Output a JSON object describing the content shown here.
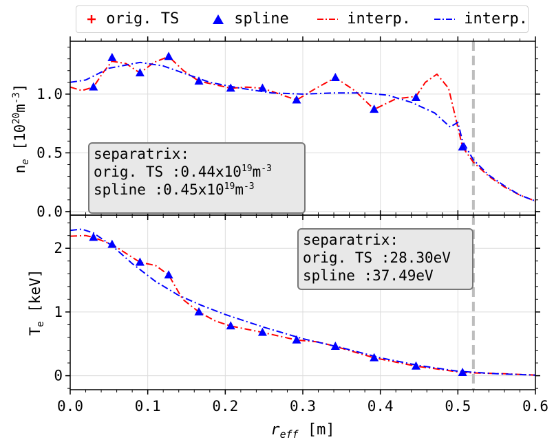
{
  "legend": [
    {
      "symbol": "plus",
      "color": "#ff0000",
      "label": "orig. TS"
    },
    {
      "symbol": "triangle",
      "color": "#0000ff",
      "label": "spline"
    },
    {
      "symbol": "dashdot",
      "color": "#ff0000",
      "label": "interp."
    },
    {
      "symbol": "dashdot",
      "color": "#0000ff",
      "label": "interp."
    }
  ],
  "chart_data": [
    {
      "type": "line",
      "panel": "top",
      "ylabel_base": "n",
      "ylabel_sub": "e",
      "ylabel_unit_open": "[10",
      "ylabel_unit_exp": "20",
      "ylabel_unit_mid": "m",
      "ylabel_unit_exp2": "-3",
      "ylabel_unit_close": "]",
      "xlim": [
        0.0,
        0.6
      ],
      "ylim": [
        -0.03,
        1.45
      ],
      "yticks": [
        0.0,
        0.5,
        1.0
      ],
      "ytick_labels": [
        "0.0",
        "0.5",
        "1.0"
      ],
      "separatrix_x": 0.52,
      "grid": true,
      "series": [
        {
          "style": "markers-triangle",
          "color": "#0000ff",
          "x": [
            0.03,
            0.054,
            0.09,
            0.127,
            0.166,
            0.207,
            0.248,
            0.292,
            0.342,
            0.392,
            0.446,
            0.506
          ],
          "y": [
            1.06,
            1.31,
            1.18,
            1.32,
            1.11,
            1.05,
            1.05,
            0.95,
            1.14,
            0.87,
            0.97,
            0.55
          ]
        },
        {
          "style": "dashdot",
          "color": "#ff0000",
          "x": [
            0.0,
            0.015,
            0.03,
            0.042,
            0.054,
            0.072,
            0.09,
            0.108,
            0.127,
            0.146,
            0.166,
            0.187,
            0.207,
            0.228,
            0.248,
            0.27,
            0.292,
            0.317,
            0.342,
            0.367,
            0.392,
            0.42,
            0.446,
            0.458,
            0.473,
            0.488,
            0.506,
            0.52,
            0.54,
            0.56,
            0.58,
            0.6
          ],
          "y": [
            1.06,
            1.03,
            1.06,
            1.18,
            1.28,
            1.26,
            1.18,
            1.27,
            1.32,
            1.2,
            1.11,
            1.08,
            1.05,
            1.06,
            1.05,
            1.0,
            0.95,
            1.05,
            1.14,
            1.03,
            0.87,
            0.96,
            0.98,
            1.1,
            1.17,
            1.05,
            0.55,
            0.42,
            0.3,
            0.21,
            0.14,
            0.09
          ]
        },
        {
          "style": "dashdot",
          "color": "#0000ff",
          "x": [
            0.0,
            0.02,
            0.05,
            0.09,
            0.12,
            0.15,
            0.18,
            0.22,
            0.26,
            0.3,
            0.34,
            0.38,
            0.41,
            0.44,
            0.47,
            0.49,
            0.5,
            0.506,
            0.52,
            0.54,
            0.56,
            0.58,
            0.6
          ],
          "y": [
            1.1,
            1.12,
            1.22,
            1.27,
            1.24,
            1.17,
            1.1,
            1.05,
            1.01,
            1.0,
            1.01,
            1.01,
            0.99,
            0.93,
            0.84,
            0.72,
            0.76,
            0.6,
            0.44,
            0.31,
            0.22,
            0.14,
            0.09
          ]
        }
      ],
      "annotation": {
        "line1": "separatrix:",
        "line2_pre": "orig. TS :0.44x10",
        "line2_exp": "19",
        "line2_mid": "m",
        "line2_exp2": "-3",
        "line3_pre": "spline :0.45x10",
        "line3_exp": "19",
        "line3_mid": "m",
        "line3_exp2": "-3"
      }
    },
    {
      "type": "line",
      "panel": "bottom",
      "ylabel_base": "T",
      "ylabel_sub": "e",
      "ylabel_unit": "[keV]",
      "xlim": [
        0.0,
        0.6
      ],
      "ylim": [
        -0.22,
        2.52
      ],
      "yticks": [
        0,
        1,
        2
      ],
      "ytick_labels": [
        "0",
        "1",
        "2"
      ],
      "xticks": [
        0.0,
        0.1,
        0.2,
        0.3,
        0.4,
        0.5,
        0.6
      ],
      "xtick_labels": [
        "0.0",
        "0.1",
        "0.2",
        "0.3",
        "0.4",
        "0.5",
        "0.6"
      ],
      "xlabel_base": "r",
      "xlabel_sub": "eff",
      "xlabel_unit": "[m]",
      "separatrix_x": 0.52,
      "grid": true,
      "series": [
        {
          "style": "markers-triangle",
          "color": "#0000ff",
          "x": [
            0.03,
            0.054,
            0.09,
            0.127,
            0.166,
            0.207,
            0.248,
            0.292,
            0.342,
            0.392,
            0.446,
            0.506
          ],
          "y": [
            2.17,
            2.06,
            1.78,
            1.58,
            1.0,
            0.78,
            0.68,
            0.56,
            0.46,
            0.28,
            0.15,
            0.05
          ]
        },
        {
          "style": "dashdot",
          "color": "#ff0000",
          "x": [
            0.0,
            0.02,
            0.03,
            0.054,
            0.09,
            0.11,
            0.127,
            0.145,
            0.166,
            0.187,
            0.207,
            0.248,
            0.292,
            0.32,
            0.342,
            0.392,
            0.446,
            0.506,
            0.53,
            0.56,
            0.6
          ],
          "y": [
            2.19,
            2.2,
            2.17,
            2.06,
            1.78,
            1.73,
            1.58,
            1.2,
            1.0,
            0.86,
            0.78,
            0.68,
            0.56,
            0.53,
            0.46,
            0.28,
            0.15,
            0.05,
            0.04,
            0.03,
            0.01
          ]
        },
        {
          "style": "dashdot",
          "color": "#0000ff",
          "x": [
            0.0,
            0.015,
            0.03,
            0.054,
            0.08,
            0.11,
            0.14,
            0.17,
            0.2,
            0.25,
            0.3,
            0.35,
            0.4,
            0.45,
            0.5,
            0.55,
            0.6
          ],
          "y": [
            2.28,
            2.3,
            2.24,
            2.04,
            1.76,
            1.48,
            1.26,
            1.1,
            0.96,
            0.76,
            0.58,
            0.44,
            0.28,
            0.16,
            0.07,
            0.03,
            0.01
          ]
        }
      ],
      "annotation": {
        "line1": "separatrix:",
        "line2": "orig. TS :28.30eV",
        "line3": "spline :37.49eV"
      }
    }
  ]
}
